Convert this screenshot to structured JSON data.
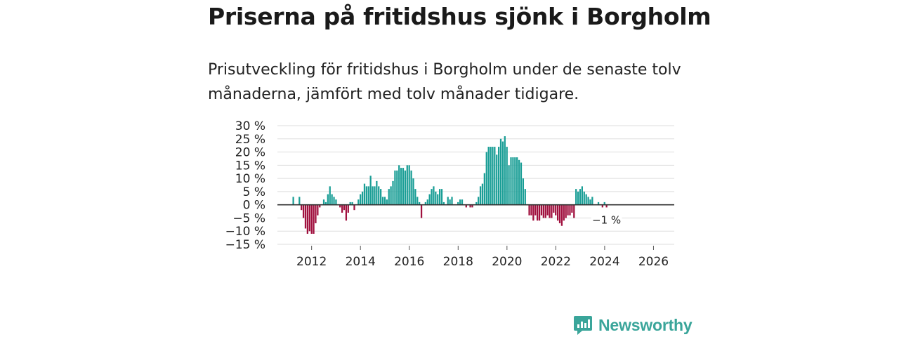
{
  "header": {
    "title": "Priserna på fritidshus sjönk i Borgholm",
    "subtitle": "Prisutveckling för fritidshus i Borgholm under de senaste tolv månaderna, jämfört med tolv månader tidigare."
  },
  "brand": {
    "name": "Newsworthy",
    "icon": "newsworthy-logo-icon"
  },
  "colors": {
    "positive": "#1a9e96",
    "negative": "#a0103e",
    "grid": "#dddddd",
    "zero_line": "#333333"
  },
  "chart_data": {
    "type": "bar",
    "title": "Priserna på fritidshus sjönk i Borgholm",
    "ylabel": "",
    "xlabel": "",
    "x_start": 2011.25,
    "x_step": 0.0833,
    "xlim": [
      2010.6,
      2026.85
    ],
    "ylim": [
      -15,
      30
    ],
    "y_ticks": [
      -15,
      -10,
      -5,
      0,
      5,
      10,
      15,
      20,
      25,
      30
    ],
    "y_tick_labels": [
      "−15 %",
      "−10 %",
      "−5 %",
      "0 %",
      "5 %",
      "10 %",
      "15 %",
      "20 %",
      "25 %",
      "30 %"
    ],
    "x_ticks": [
      2012,
      2014,
      2016,
      2018,
      2020,
      2022,
      2024,
      2026
    ],
    "x_tick_labels": [
      "2012",
      "2014",
      "2016",
      "2018",
      "2020",
      "2022",
      "2024",
      "2026"
    ],
    "values": [
      3,
      0,
      0,
      3,
      -2,
      -5,
      -9,
      -11,
      -10,
      -11,
      -11,
      -7,
      -4,
      -1,
      0,
      2,
      1,
      4,
      7,
      4,
      3,
      2,
      0,
      -1,
      -3,
      -2,
      -6,
      -3,
      1,
      1,
      -2,
      0,
      2,
      4,
      5,
      8,
      7,
      7,
      11,
      7,
      7,
      9,
      7,
      6,
      3,
      3,
      2,
      6,
      7,
      9,
      13,
      13,
      15,
      14,
      14,
      13,
      15,
      15,
      13,
      10,
      6,
      3,
      1,
      -5,
      0,
      1,
      2,
      4,
      6,
      7,
      5,
      4,
      6,
      6,
      1,
      0,
      3,
      2,
      3,
      0,
      0,
      1,
      2,
      2,
      0,
      -1,
      0,
      -1,
      -1,
      0,
      1,
      3,
      7,
      8,
      12,
      20,
      22,
      22,
      22,
      22,
      19,
      22,
      25,
      24,
      26,
      22,
      15,
      18,
      18,
      18,
      18,
      17,
      16,
      10,
      6,
      0,
      -4,
      -4,
      -6,
      -4,
      -6,
      -6,
      -4,
      -5,
      -5,
      -4,
      -5,
      -5,
      -3,
      -4,
      -6,
      -7,
      -8,
      -6,
      -5,
      -4,
      -4,
      -3,
      -5,
      6,
      5,
      6,
      7,
      5,
      4,
      3,
      2,
      3,
      0,
      0,
      1,
      0,
      -1,
      1,
      -1
    ],
    "end_label": "−1 %"
  }
}
